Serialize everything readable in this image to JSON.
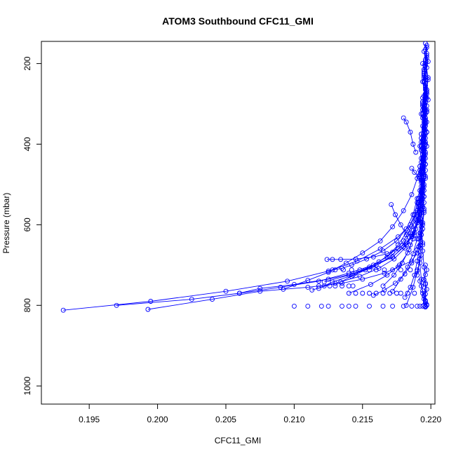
{
  "chart_data": {
    "type": "line",
    "title": "ATOM3 Southbound CFC11_GMI",
    "xlabel": "CFC11_GMI",
    "ylabel": "Pressure (mbar)",
    "xlim": [
      0.1915,
      0.2203
    ],
    "ylim": [
      1045,
      145
    ],
    "y_inverted": true,
    "x_ticks": [
      0.195,
      0.2,
      0.205,
      0.21,
      0.215,
      0.22
    ],
    "x_tick_labels": [
      "0.195",
      "0.200",
      "0.205",
      "0.210",
      "0.215",
      "0.220"
    ],
    "y_ticks": [
      200,
      400,
      600,
      800,
      1000
    ],
    "y_tick_labels": [
      "200",
      "400",
      "600",
      "800",
      "1000"
    ],
    "series_color": "#0000ff",
    "marker": "open-circle",
    "grid": false,
    "legend": "none",
    "series": [
      {
        "x": [
          0.2196,
          0.2197,
          0.2195,
          0.2196,
          0.2194,
          0.2196,
          0.2195,
          0.2196,
          0.2194,
          0.2195,
          0.2193,
          0.2195,
          0.2194,
          0.2192,
          0.2194,
          0.219,
          0.2186,
          0.2176,
          0.2166,
          0.215,
          0.2135,
          0.211,
          0.2075,
          0.204,
          0.1993
        ],
        "y": [
          150,
          180,
          220,
          260,
          300,
          340,
          380,
          420,
          460,
          500,
          540,
          570,
          600,
          620,
          650,
          670,
          690,
          705,
          720,
          735,
          745,
          755,
          765,
          785,
          810
        ]
      },
      {
        "x": [
          0.2197,
          0.2196,
          0.2198,
          0.2196,
          0.2197,
          0.2195,
          0.2196,
          0.2194,
          0.2196,
          0.2193,
          0.2195,
          0.2191,
          0.2188,
          0.2182,
          0.2172,
          0.2158,
          0.214,
          0.2118,
          0.209,
          0.206,
          0.2025,
          0.197
        ],
        "y": [
          160,
          200,
          240,
          280,
          320,
          360,
          400,
          440,
          480,
          520,
          560,
          590,
          620,
          650,
          680,
          700,
          720,
          740,
          755,
          770,
          785,
          800
        ]
      },
      {
        "x": [
          0.2195,
          0.2197,
          0.2196,
          0.2198,
          0.2195,
          0.2197,
          0.2194,
          0.2196,
          0.2193,
          0.2195,
          0.219,
          0.2185,
          0.2176,
          0.2163,
          0.2146,
          0.2125,
          0.2095,
          0.205,
          0.1995,
          0.1931
        ],
        "y": [
          170,
          210,
          250,
          290,
          330,
          370,
          410,
          450,
          490,
          530,
          570,
          600,
          630,
          660,
          690,
          715,
          740,
          765,
          790,
          812
        ]
      },
      {
        "x": [
          0.2196,
          0.2198,
          0.2195,
          0.2197,
          0.2196,
          0.2194,
          0.2196,
          0.2193,
          0.2195,
          0.2192,
          0.2194,
          0.2191,
          0.2189,
          0.2186,
          0.2182,
          0.2176,
          0.2168,
          0.2158,
          0.2145,
          0.2134,
          0.2128,
          0.2124
        ],
        "y": [
          165,
          195,
          235,
          275,
          315,
          355,
          395,
          435,
          475,
          515,
          555,
          585,
          610,
          630,
          645,
          660,
          672,
          680,
          685,
          686,
          686,
          686
        ]
      },
      {
        "x": [
          0.2197,
          0.2195,
          0.2196,
          0.2194,
          0.2196,
          0.2193,
          0.2195,
          0.2192,
          0.2194,
          0.219,
          0.2187,
          0.2182,
          0.2175,
          0.2165,
          0.2153,
          0.2142,
          0.2135,
          0.2128
        ],
        "y": [
          175,
          215,
          255,
          295,
          335,
          375,
          415,
          455,
          495,
          535,
          575,
          610,
          640,
          665,
          685,
          700,
          708,
          712
        ]
      },
      {
        "x": [
          0.2196,
          0.2195,
          0.2197,
          0.2195,
          0.2196,
          0.2194,
          0.2195,
          0.2193,
          0.2194,
          0.2191,
          0.219,
          0.2186,
          0.218,
          0.2172,
          0.216,
          0.2145,
          0.2125,
          0.21,
          0.2075,
          0.206
        ],
        "y": [
          190,
          230,
          270,
          310,
          350,
          390,
          430,
          470,
          510,
          550,
          590,
          625,
          655,
          680,
          700,
          720,
          735,
          748,
          758,
          770
        ]
      },
      {
        "x": [
          0.2197,
          0.2195,
          0.2197,
          0.2194,
          0.2196,
          0.2193,
          0.2195,
          0.2192,
          0.2194,
          0.219,
          0.2192,
          0.2193,
          0.2194,
          0.2195,
          0.2196,
          0.2196
        ],
        "y": [
          185,
          225,
          265,
          305,
          345,
          385,
          425,
          465,
          505,
          545,
          585,
          625,
          665,
          705,
          745,
          790
        ]
      },
      {
        "x": [
          0.2196,
          0.2194,
          0.2196,
          0.2193,
          0.2195,
          0.2192,
          0.2193,
          0.219,
          0.2186,
          0.218,
          0.2172,
          0.2163,
          0.215,
          0.2138,
          0.2125,
          0.211,
          0.2092
        ],
        "y": [
          205,
          245,
          285,
          325,
          365,
          405,
          445,
          485,
          525,
          565,
          605,
          640,
          670,
          695,
          718,
          738,
          760
        ]
      },
      {
        "x": [
          0.2195,
          0.2196,
          0.2194,
          0.2196,
          0.2193,
          0.2195,
          0.2192,
          0.2194,
          0.2191,
          0.2188,
          0.2183,
          0.2176,
          0.2168,
          0.2155,
          0.214,
          0.2122
        ],
        "y": [
          215,
          255,
          295,
          335,
          375,
          415,
          455,
          495,
          535,
          575,
          615,
          650,
          680,
          705,
          725,
          742
        ]
      },
      {
        "x": [
          0.2194,
          0.2196,
          0.2195,
          0.2197,
          0.2195,
          0.2196,
          0.2194,
          0.2195,
          0.2193,
          0.2192,
          0.219,
          0.2186,
          0.2181,
          0.2173,
          0.2162,
          0.2148,
          0.213,
          0.2113
        ],
        "y": [
          200,
          240,
          280,
          320,
          360,
          400,
          440,
          480,
          520,
          560,
          595,
          628,
          658,
          685,
          708,
          728,
          745,
          762
        ]
      },
      {
        "x": [
          0.2197,
          0.2196,
          0.2198,
          0.2196,
          0.2197,
          0.2195,
          0.2196,
          0.2194,
          0.2195,
          0.2193,
          0.2192,
          0.219,
          0.2187,
          0.2183,
          0.2177,
          0.2168,
          0.2156,
          0.214
        ],
        "y": [
          155,
          195,
          235,
          275,
          315,
          355,
          395,
          435,
          475,
          515,
          555,
          595,
          635,
          670,
          700,
          725,
          748,
          770
        ]
      },
      {
        "x": [
          0.2195,
          0.2196,
          0.2194,
          0.2196,
          0.2193,
          0.2195,
          0.2192,
          0.2194,
          0.2191,
          0.2189,
          0.2185,
          0.2179,
          0.217,
          0.2158,
          0.2143,
          0.2128,
          0.2118
        ],
        "y": [
          225,
          265,
          305,
          345,
          385,
          425,
          465,
          505,
          545,
          585,
          620,
          652,
          680,
          705,
          725,
          742,
          758
        ]
      },
      {
        "x": [
          0.2196,
          0.2197,
          0.2195,
          0.2196,
          0.2194,
          0.2196,
          0.2193,
          0.2195,
          0.2192,
          0.2194,
          0.2191,
          0.2193,
          0.219,
          0.2187,
          0.2182
        ],
        "y": [
          235,
          275,
          315,
          355,
          395,
          435,
          475,
          515,
          555,
          595,
          635,
          675,
          715,
          755,
          800
        ]
      },
      {
        "x": [
          0.2195,
          0.2197,
          0.2194,
          0.2196,
          0.2193,
          0.2195,
          0.2192,
          0.2194,
          0.219,
          0.2186,
          0.218,
          0.2172,
          0.2162,
          0.2152,
          0.2142,
          0.2134
        ],
        "y": [
          245,
          285,
          325,
          365,
          405,
          445,
          485,
          525,
          565,
          605,
          640,
          668,
          692,
          712,
          728,
          742
        ]
      },
      {
        "x": [
          0.2197,
          0.2195,
          0.2197,
          0.2195,
          0.2196,
          0.2194,
          0.2195,
          0.2193,
          0.2191,
          0.2188,
          0.2184,
          0.2179,
          0.2173,
          0.2165
        ],
        "y": [
          265,
          305,
          345,
          385,
          425,
          465,
          505,
          545,
          585,
          625,
          662,
          695,
          725,
          752
        ]
      },
      {
        "x": [
          0.2196,
          0.2194,
          0.2196,
          0.2193,
          0.2195,
          0.2192,
          0.2194,
          0.2191,
          0.2193,
          0.219,
          0.2187,
          0.2183,
          0.2178,
          0.2172
        ],
        "y": [
          275,
          315,
          355,
          395,
          435,
          475,
          515,
          555,
          595,
          635,
          672,
          705,
          735,
          765
        ]
      },
      {
        "x": [
          0.2194,
          0.2196,
          0.2195,
          0.2197,
          0.2195,
          0.2196,
          0.2194,
          0.2195,
          0.2193,
          0.2194,
          0.2192,
          0.219
        ],
        "y": [
          285,
          325,
          365,
          405,
          445,
          485,
          525,
          565,
          605,
          645,
          685,
          725
        ]
      },
      {
        "x": [
          0.2196,
          0.2194,
          0.2196,
          0.2193,
          0.2195,
          0.2193,
          0.2194,
          0.2192,
          0.2193,
          0.2191,
          0.2192,
          0.2193,
          0.2194,
          0.2195
        ],
        "y": [
          295,
          335,
          375,
          415,
          455,
          495,
          535,
          575,
          615,
          655,
          695,
          735,
          770,
          800
        ]
      },
      {
        "x": [
          0.2197,
          0.2195,
          0.2196,
          0.2194,
          0.2196,
          0.2193,
          0.2195,
          0.2192,
          0.2193,
          0.219,
          0.2186,
          0.2181,
          0.2174,
          0.2166,
          0.2158
        ],
        "y": [
          305,
          345,
          385,
          425,
          465,
          505,
          545,
          585,
          625,
          662,
          695,
          722,
          745,
          762,
          775
        ]
      },
      {
        "x": [
          0.2195,
          0.2197,
          0.2195,
          0.2196,
          0.2194,
          0.2195,
          0.2193,
          0.2194,
          0.2192,
          0.219,
          0.2188,
          0.2185,
          0.2181
        ],
        "y": [
          330,
          370,
          410,
          450,
          490,
          530,
          570,
          610,
          650,
          690,
          725,
          755,
          780
        ]
      },
      {
        "x": [
          0.218,
          0.2182,
          0.2185,
          0.2187,
          0.2189
        ],
        "y": [
          335,
          345,
          370,
          400,
          420
        ]
      },
      {
        "x": [
          0.2186,
          0.2188,
          0.2191,
          0.2193
        ],
        "y": [
          460,
          470,
          480,
          490
        ]
      },
      {
        "x": [
          0.2171,
          0.2174,
          0.2178,
          0.2182,
          0.2185
        ],
        "y": [
          550,
          575,
          600,
          625,
          650
        ]
      },
      {
        "x": [
          0.2196,
          0.2197,
          0.2196,
          0.2195,
          0.2196,
          0.2197,
          0.2196,
          0.2195,
          0.2196,
          0.2197,
          0.2196
        ],
        "y": [
          700,
          712,
          724,
          736,
          748,
          760,
          772,
          784,
          794,
          800,
          804
        ]
      },
      {
        "x": [
          0.2192,
          0.2193,
          0.2194,
          0.2195,
          0.2196,
          0.2197
        ],
        "y": [
          740,
          752,
          764,
          776,
          788,
          798
        ]
      }
    ],
    "scattered_points": {
      "x": [
        0.21,
        0.211,
        0.212,
        0.2125,
        0.2135,
        0.214,
        0.2145,
        0.2155,
        0.2165,
        0.2172,
        0.218,
        0.2186,
        0.219,
        0.2192,
        0.2194,
        0.2196,
        0.2196,
        0.2145,
        0.215,
        0.2155,
        0.216,
        0.2165,
        0.217,
        0.2175,
        0.2178,
        0.2183,
        0.2188,
        0.2118,
        0.2122,
        0.2126,
        0.213,
        0.2135,
        0.214,
        0.2143,
        0.213,
        0.2136,
        0.2142,
        0.2148,
        0.2155,
        0.216,
        0.2166,
        0.2172,
        0.2178,
        0.2185,
        0.219
      ],
      "y": [
        802,
        802,
        802,
        802,
        802,
        802,
        802,
        802,
        802,
        802,
        802,
        802,
        802,
        802,
        802,
        802,
        804,
        770,
        770,
        770,
        770,
        770,
        770,
        770,
        770,
        770,
        770,
        752,
        752,
        752,
        752,
        752,
        752,
        752,
        712,
        712,
        712,
        712,
        712,
        712,
        712,
        712,
        712,
        712,
        712
      ]
    }
  }
}
